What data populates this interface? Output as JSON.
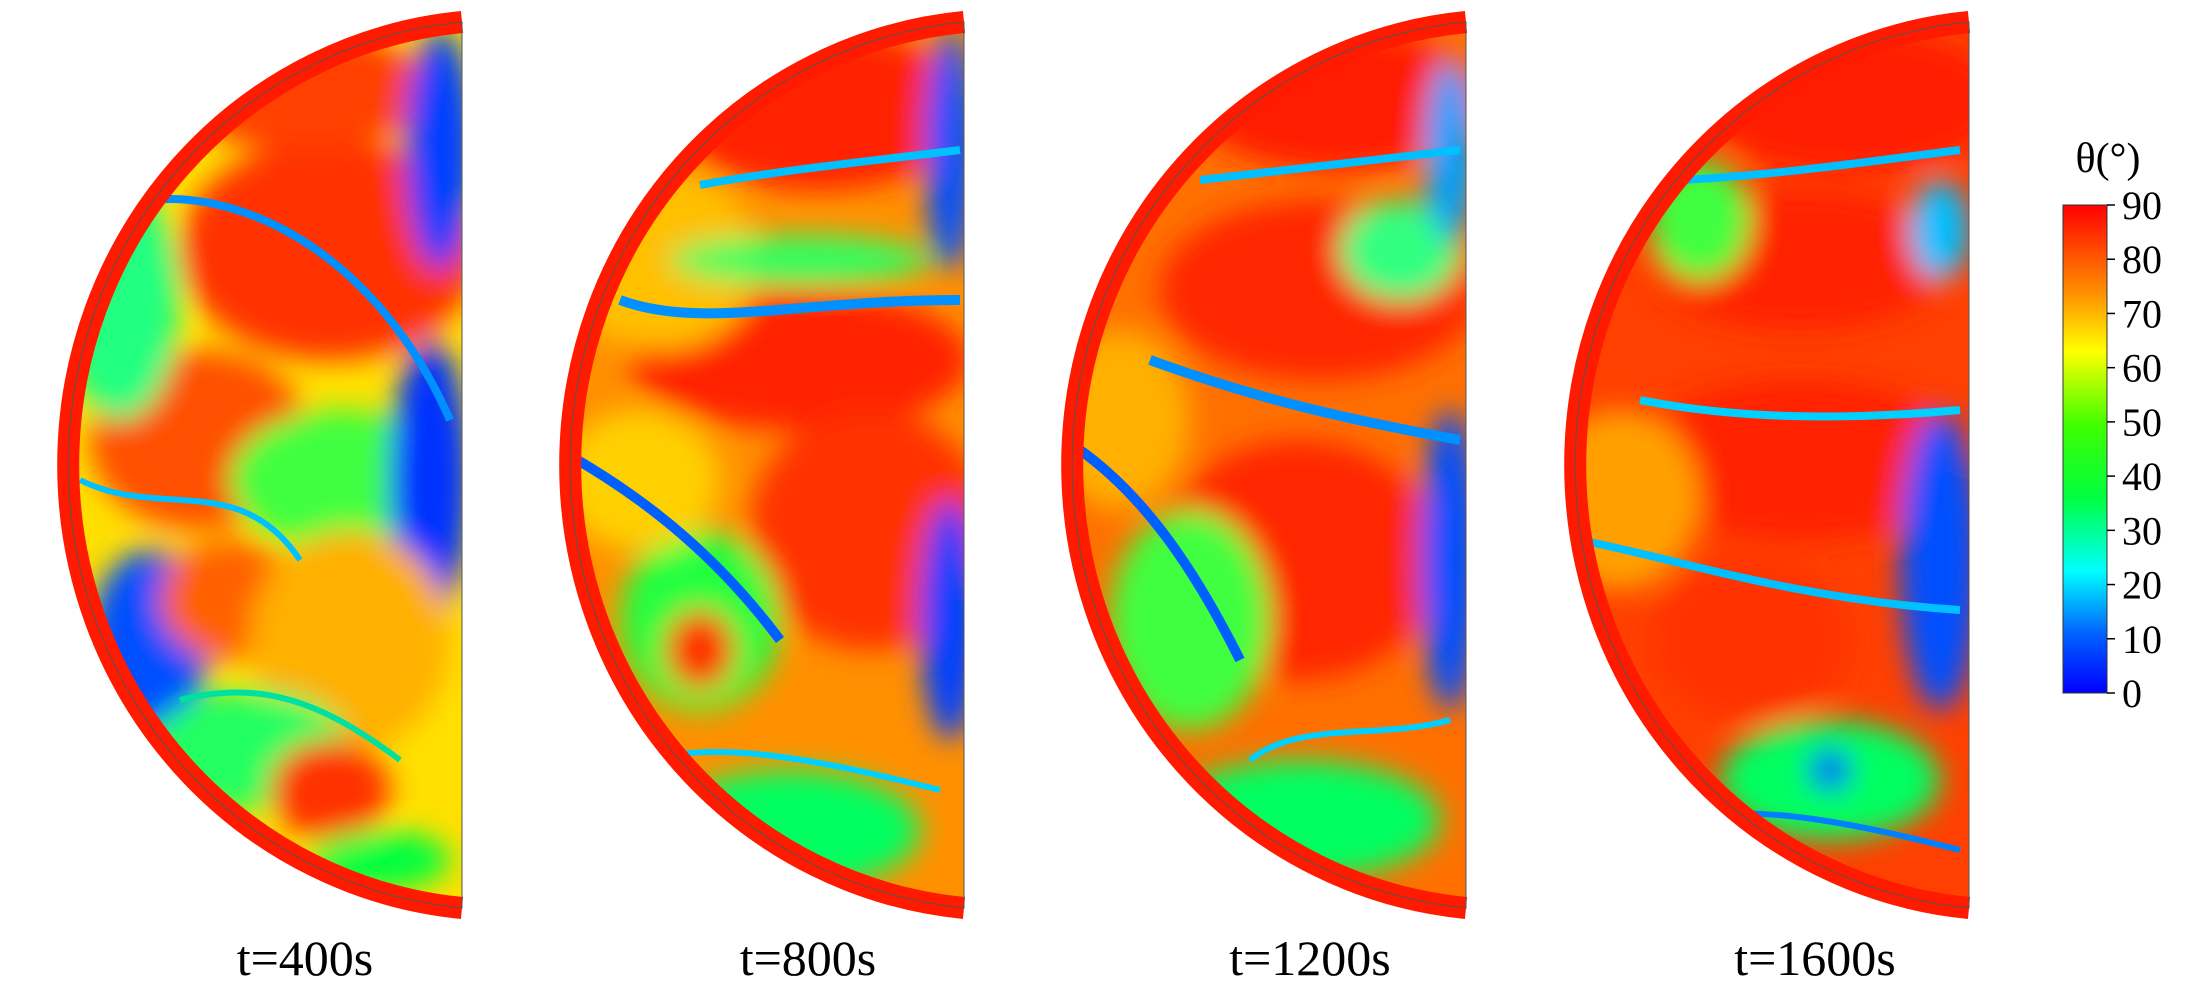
{
  "panels": [
    {
      "label": "t=400s"
    },
    {
      "label": "t=800s"
    },
    {
      "label": "t=1200s"
    },
    {
      "label": "t=1600s"
    }
  ],
  "colorbar": {
    "title": "θ(°)",
    "ticks": [
      "90",
      "80",
      "70",
      "60",
      "50",
      "40",
      "30",
      "20",
      "10",
      "0"
    ],
    "range": [
      0,
      90
    ],
    "colormap": [
      "#0000ff",
      "#0080ff",
      "#00ffff",
      "#00ff00",
      "#80ff00",
      "#ffff00",
      "#ff8000",
      "#ff0000"
    ]
  }
}
